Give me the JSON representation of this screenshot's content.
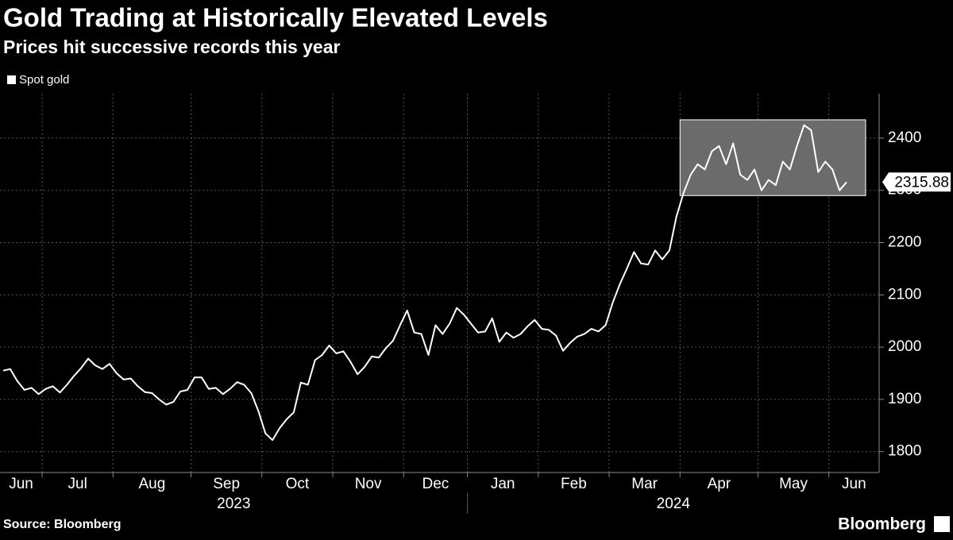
{
  "chart_data": {
    "type": "line",
    "title": "Gold Trading at Historically Elevated Levels",
    "subtitle": "Prices hit successive records this year",
    "source": "Source: Bloomberg",
    "brand": "Bloomberg",
    "categories": [
      "Jun",
      "Jun",
      "Jun",
      "Jun",
      "Jun",
      "Jun",
      "Jul",
      "Jul",
      "Jul",
      "Jul",
      "Jul",
      "Jul",
      "Jul",
      "Jul",
      "Jul",
      "Jul",
      "Aug",
      "Aug",
      "Aug",
      "Aug",
      "Aug",
      "Aug",
      "Aug",
      "Aug",
      "Aug",
      "Aug",
      "Aug",
      "Sep",
      "Sep",
      "Sep",
      "Sep",
      "Sep",
      "Sep",
      "Sep",
      "Sep",
      "Sep",
      "Sep",
      "Oct",
      "Oct",
      "Oct",
      "Oct",
      "Oct",
      "Oct",
      "Oct",
      "Oct",
      "Oct",
      "Oct",
      "Nov",
      "Nov",
      "Nov",
      "Nov",
      "Nov",
      "Nov",
      "Nov",
      "Nov",
      "Nov",
      "Nov",
      "Dec",
      "Dec",
      "Dec",
      "Dec",
      "Dec",
      "Dec",
      "Dec",
      "Dec",
      "Dec",
      "Jan",
      "Jan",
      "Jan",
      "Jan",
      "Jan",
      "Jan",
      "Jan",
      "Jan",
      "Jan",
      "Jan",
      "Feb",
      "Feb",
      "Feb",
      "Feb",
      "Feb",
      "Feb",
      "Feb",
      "Feb",
      "Feb",
      "Feb",
      "Mar",
      "Mar",
      "Mar",
      "Mar",
      "Mar",
      "Mar",
      "Mar",
      "Mar",
      "Mar",
      "Mar",
      "Apr",
      "Apr",
      "Apr",
      "Apr",
      "Apr",
      "Apr",
      "Apr",
      "Apr",
      "Apr",
      "Apr",
      "Apr",
      "May",
      "May",
      "May",
      "May",
      "May",
      "May",
      "May",
      "May",
      "May",
      "May",
      "Jun",
      "Jun",
      "Jun"
    ],
    "x_groups": [
      {
        "label": "2023",
        "start": 0
      },
      {
        "label": "2024",
        "start": 66
      }
    ],
    "series": [
      {
        "name": "Spot gold",
        "color": "#ffffff",
        "values": [
          1955,
          1958,
          1935,
          1918,
          1922,
          1910,
          1920,
          1925,
          1913,
          1928,
          1945,
          1960,
          1978,
          1965,
          1958,
          1968,
          1950,
          1938,
          1940,
          1925,
          1914,
          1912,
          1900,
          1890,
          1895,
          1915,
          1918,
          1942,
          1942,
          1920,
          1922,
          1910,
          1920,
          1933,
          1928,
          1912,
          1878,
          1835,
          1822,
          1845,
          1862,
          1875,
          1932,
          1928,
          1975,
          1985,
          2003,
          1988,
          1992,
          1972,
          1948,
          1962,
          1982,
          1980,
          1998,
          2012,
          2042,
          2070,
          2028,
          2025,
          1985,
          2042,
          2025,
          2045,
          2075,
          2062,
          2045,
          2028,
          2030,
          2055,
          2010,
          2028,
          2018,
          2025,
          2040,
          2052,
          2035,
          2033,
          2022,
          1993,
          2008,
          2020,
          2025,
          2035,
          2030,
          2042,
          2085,
          2120,
          2150,
          2182,
          2160,
          2158,
          2185,
          2168,
          2185,
          2250,
          2295,
          2330,
          2350,
          2340,
          2375,
          2385,
          2350,
          2390,
          2330,
          2320,
          2340,
          2300,
          2320,
          2310,
          2355,
          2340,
          2385,
          2425,
          2415,
          2335,
          2355,
          2340,
          2300,
          2315.88
        ]
      }
    ],
    "highlight": {
      "start": 96,
      "ylim": [
        2290,
        2435
      ],
      "color": "#6b6b6b"
    },
    "ylim": [
      1760,
      2485
    ],
    "yticks": [
      1800,
      1900,
      2000,
      2100,
      2200,
      2300,
      2400
    ],
    "grid": true
  }
}
